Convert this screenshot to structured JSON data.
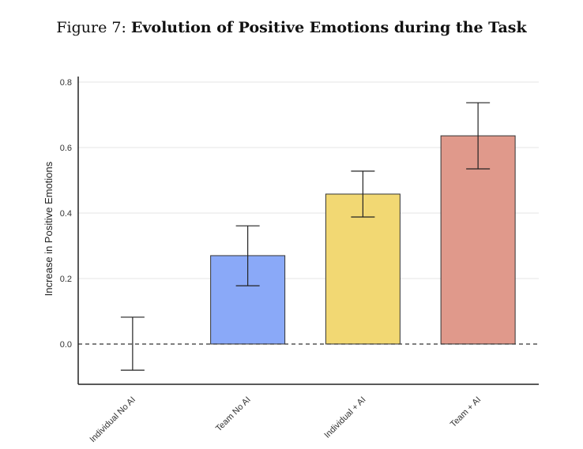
{
  "figure_label": "Figure 7:",
  "chart_data": {
    "type": "bar",
    "title": "Evolution of Positive Emotions during the Task",
    "xlabel": "",
    "ylabel": "Increase in Positive Emotions",
    "categories": [
      "Individual No AI",
      "Team No AI",
      "Individual + AI",
      "Team + AI"
    ],
    "values": [
      0.0,
      0.27,
      0.458,
      0.636
    ],
    "error_low": [
      -0.08,
      0.178,
      0.388,
      0.535
    ],
    "error_high": [
      0.082,
      0.361,
      0.528,
      0.737
    ],
    "colors": [
      "#8aa9f8",
      "#8aa9f8",
      "#f2d873",
      "#e0998b"
    ],
    "ylim": [
      -0.123,
      0.817
    ],
    "yticks": [
      0.0,
      0.2,
      0.4,
      0.6,
      0.8
    ],
    "ytick_labels": [
      "0.0",
      "0.2",
      "0.4",
      "0.6",
      "0.8"
    ],
    "grid": true,
    "reference_line": 0.0
  }
}
